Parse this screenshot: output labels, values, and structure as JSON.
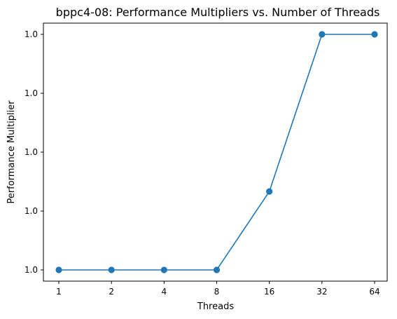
{
  "chart_data": {
    "type": "line",
    "title": "bppc4-08: Performance Multipliers vs. Number of Threads",
    "xlabel": "Threads",
    "ylabel": "Performance Multiplier",
    "categories": [
      "1",
      "2",
      "4",
      "8",
      "16",
      "32",
      "64"
    ],
    "series": [
      {
        "values": [
          1.0,
          1.0,
          1.0,
          1.0,
          1.0,
          1.0,
          1.0
        ],
        "relative_levels": [
          0.0,
          0.0,
          0.0,
          0.0,
          0.333,
          1.0,
          1.0
        ],
        "color": "#1f77b4",
        "marker": "circle"
      }
    ],
    "y_tick_labels": [
      "1.0",
      "1.0",
      "1.0",
      "1.0",
      "1.0"
    ],
    "y_tick_levels": [
      0.0,
      0.25,
      0.5,
      0.75,
      1.0
    ],
    "grid": false,
    "legend": "none"
  }
}
